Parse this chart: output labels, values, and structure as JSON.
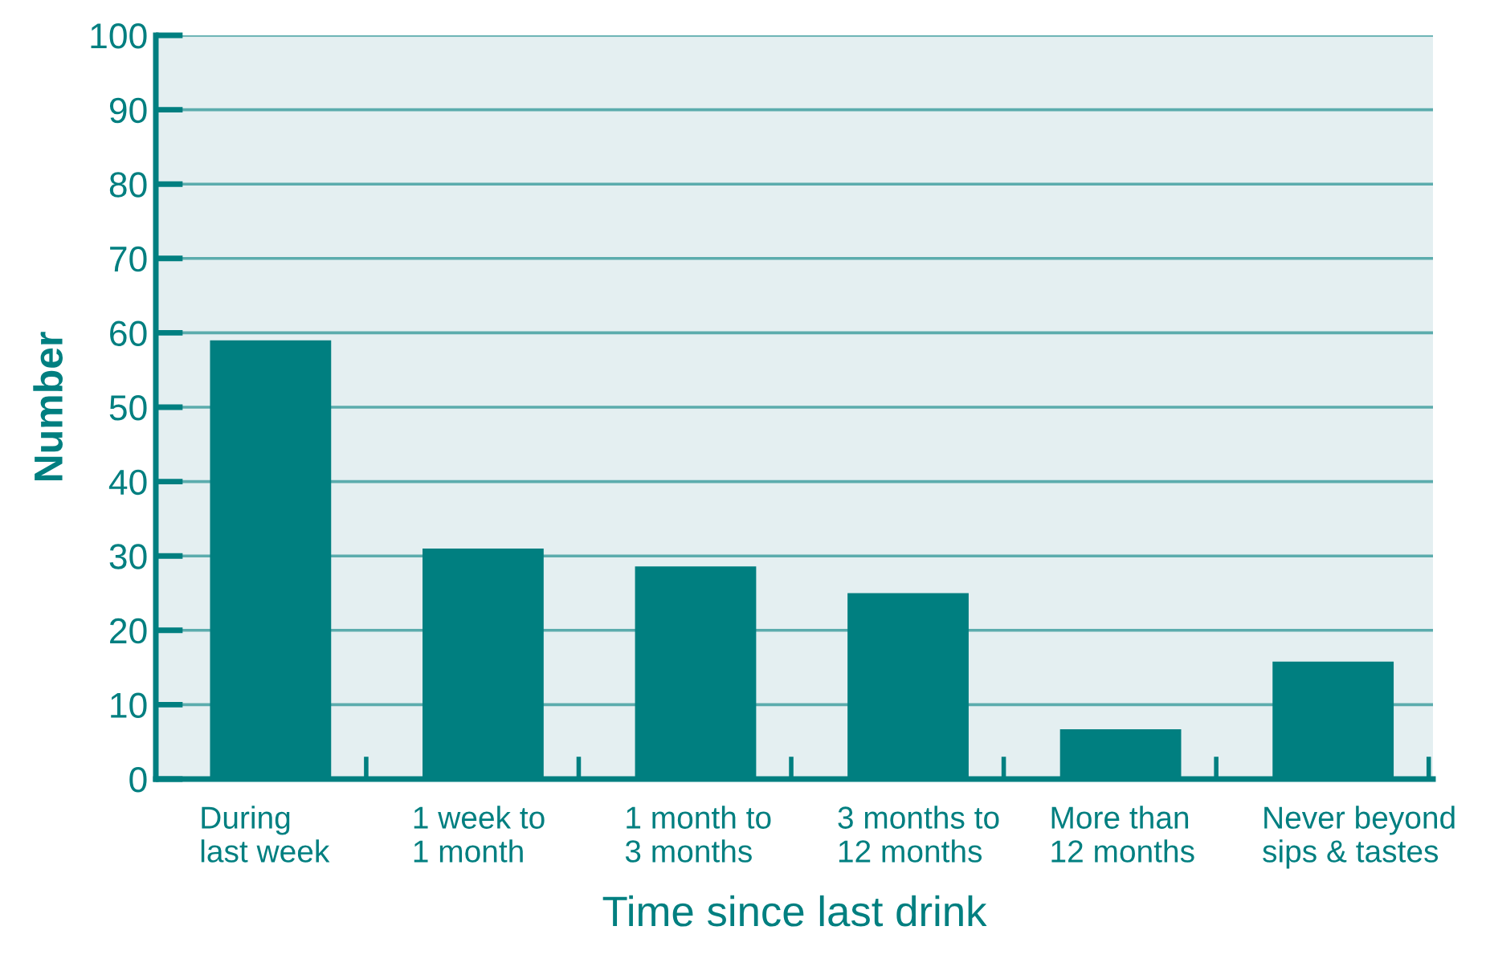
{
  "chart_data": {
    "type": "bar",
    "xlabel": "Time since last drink",
    "ylabel": "Number",
    "categories": [
      "During\nlast week",
      "1 week to\n1 month",
      "1 month to\n3 months",
      "3 months to\n12 months",
      "More than\n12 months",
      "Never beyond\nsips & tastes"
    ],
    "values": [
      59,
      31,
      28.6,
      25,
      6.7,
      15.8
    ],
    "color": "#007f80",
    "ylim": [
      0,
      100
    ],
    "yticks": [
      0,
      10,
      20,
      30,
      40,
      50,
      60,
      70,
      80,
      90,
      100
    ],
    "grid": "y",
    "legend": false
  }
}
